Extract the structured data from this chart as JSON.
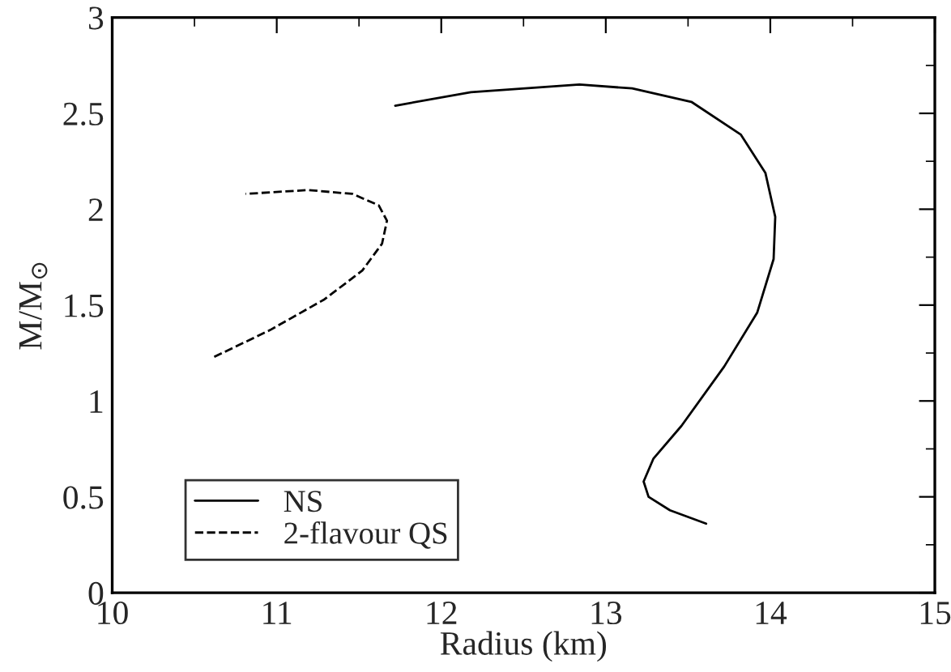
{
  "chart_data": {
    "type": "line",
    "xlabel": "Radius (km)",
    "ylabel": "M/M$_{⊙}$",
    "xlim": [
      10,
      15
    ],
    "ylim": [
      0,
      3
    ],
    "xticks": [
      10,
      {
        "value": 10.5,
        "label": null
      },
      11,
      {
        "value": 11.5,
        "label": null
      },
      12,
      {
        "value": 12.5,
        "label": null
      },
      13,
      {
        "value": 13.5,
        "label": null
      },
      14,
      {
        "value": 14.5,
        "label": null
      },
      15
    ],
    "yticks": [
      0,
      {
        "value": 0.25,
        "label": null
      },
      0.5,
      {
        "value": 0.75,
        "label": null
      },
      1,
      {
        "value": 1.25,
        "label": null
      },
      1.5,
      {
        "value": 1.75,
        "label": null
      },
      2,
      {
        "value": 2.25,
        "label": null
      },
      2.5,
      {
        "value": 2.75,
        "label": null
      },
      3
    ],
    "grid": false,
    "legend": "bottom left",
    "marker": "none",
    "series": [
      {
        "name": "NS",
        "color": "#000000",
        "line_style": "solid",
        "x": [
          11.72,
          12.18,
          12.84,
          13.16,
          13.52,
          13.82,
          13.97,
          14.03,
          14.02,
          13.92,
          13.72,
          13.46,
          13.29,
          13.23,
          13.26,
          13.39,
          13.61
        ],
        "values": [
          2.54,
          2.61,
          2.65,
          2.63,
          2.56,
          2.39,
          2.19,
          1.96,
          1.74,
          1.46,
          1.18,
          0.87,
          0.7,
          0.58,
          0.5,
          0.43,
          0.36
        ]
      },
      {
        "name": "2-flavour QS",
        "color": "#000000",
        "line_style": "dashed",
        "x": [
          10.62,
          10.96,
          11.29,
          11.52,
          11.64,
          11.67,
          11.62,
          11.46,
          11.19,
          10.81
        ],
        "values": [
          1.23,
          1.37,
          1.53,
          1.68,
          1.82,
          1.94,
          2.02,
          2.08,
          2.1,
          2.08
        ]
      }
    ]
  }
}
